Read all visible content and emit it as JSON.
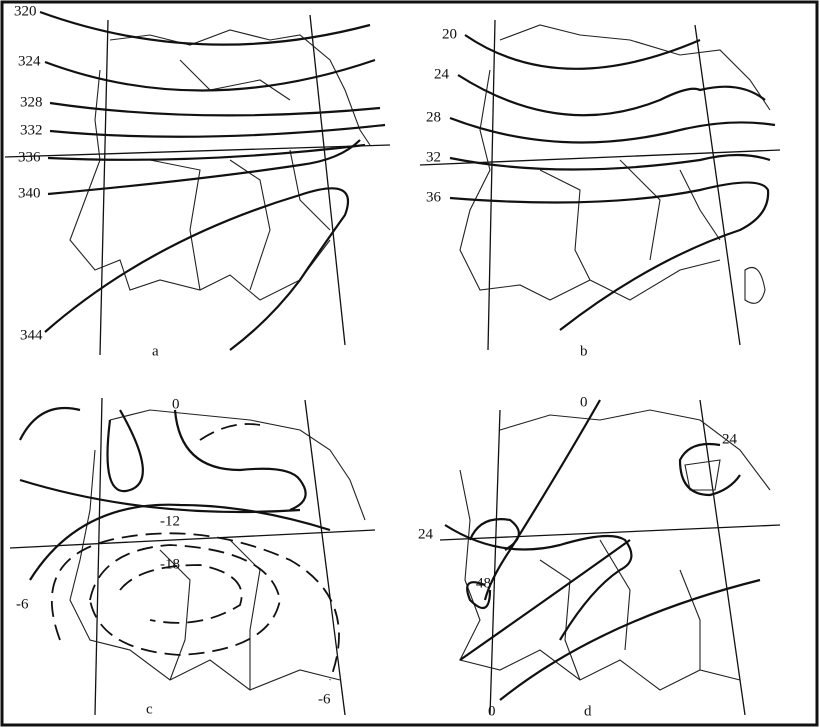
{
  "panels": [
    {
      "label": "a",
      "contour_labels": [
        "320",
        "324",
        "328",
        "332",
        "336",
        "340",
        "344"
      ]
    },
    {
      "label": "b",
      "contour_labels": [
        "20",
        "24",
        "28",
        "32",
        "36"
      ]
    },
    {
      "label": "c",
      "contour_labels": [
        "0",
        "-12",
        "-18",
        "-6",
        "-6"
      ]
    },
    {
      "label": "d",
      "contour_labels": [
        "0",
        "24",
        "24",
        "48",
        "0"
      ]
    }
  ]
}
